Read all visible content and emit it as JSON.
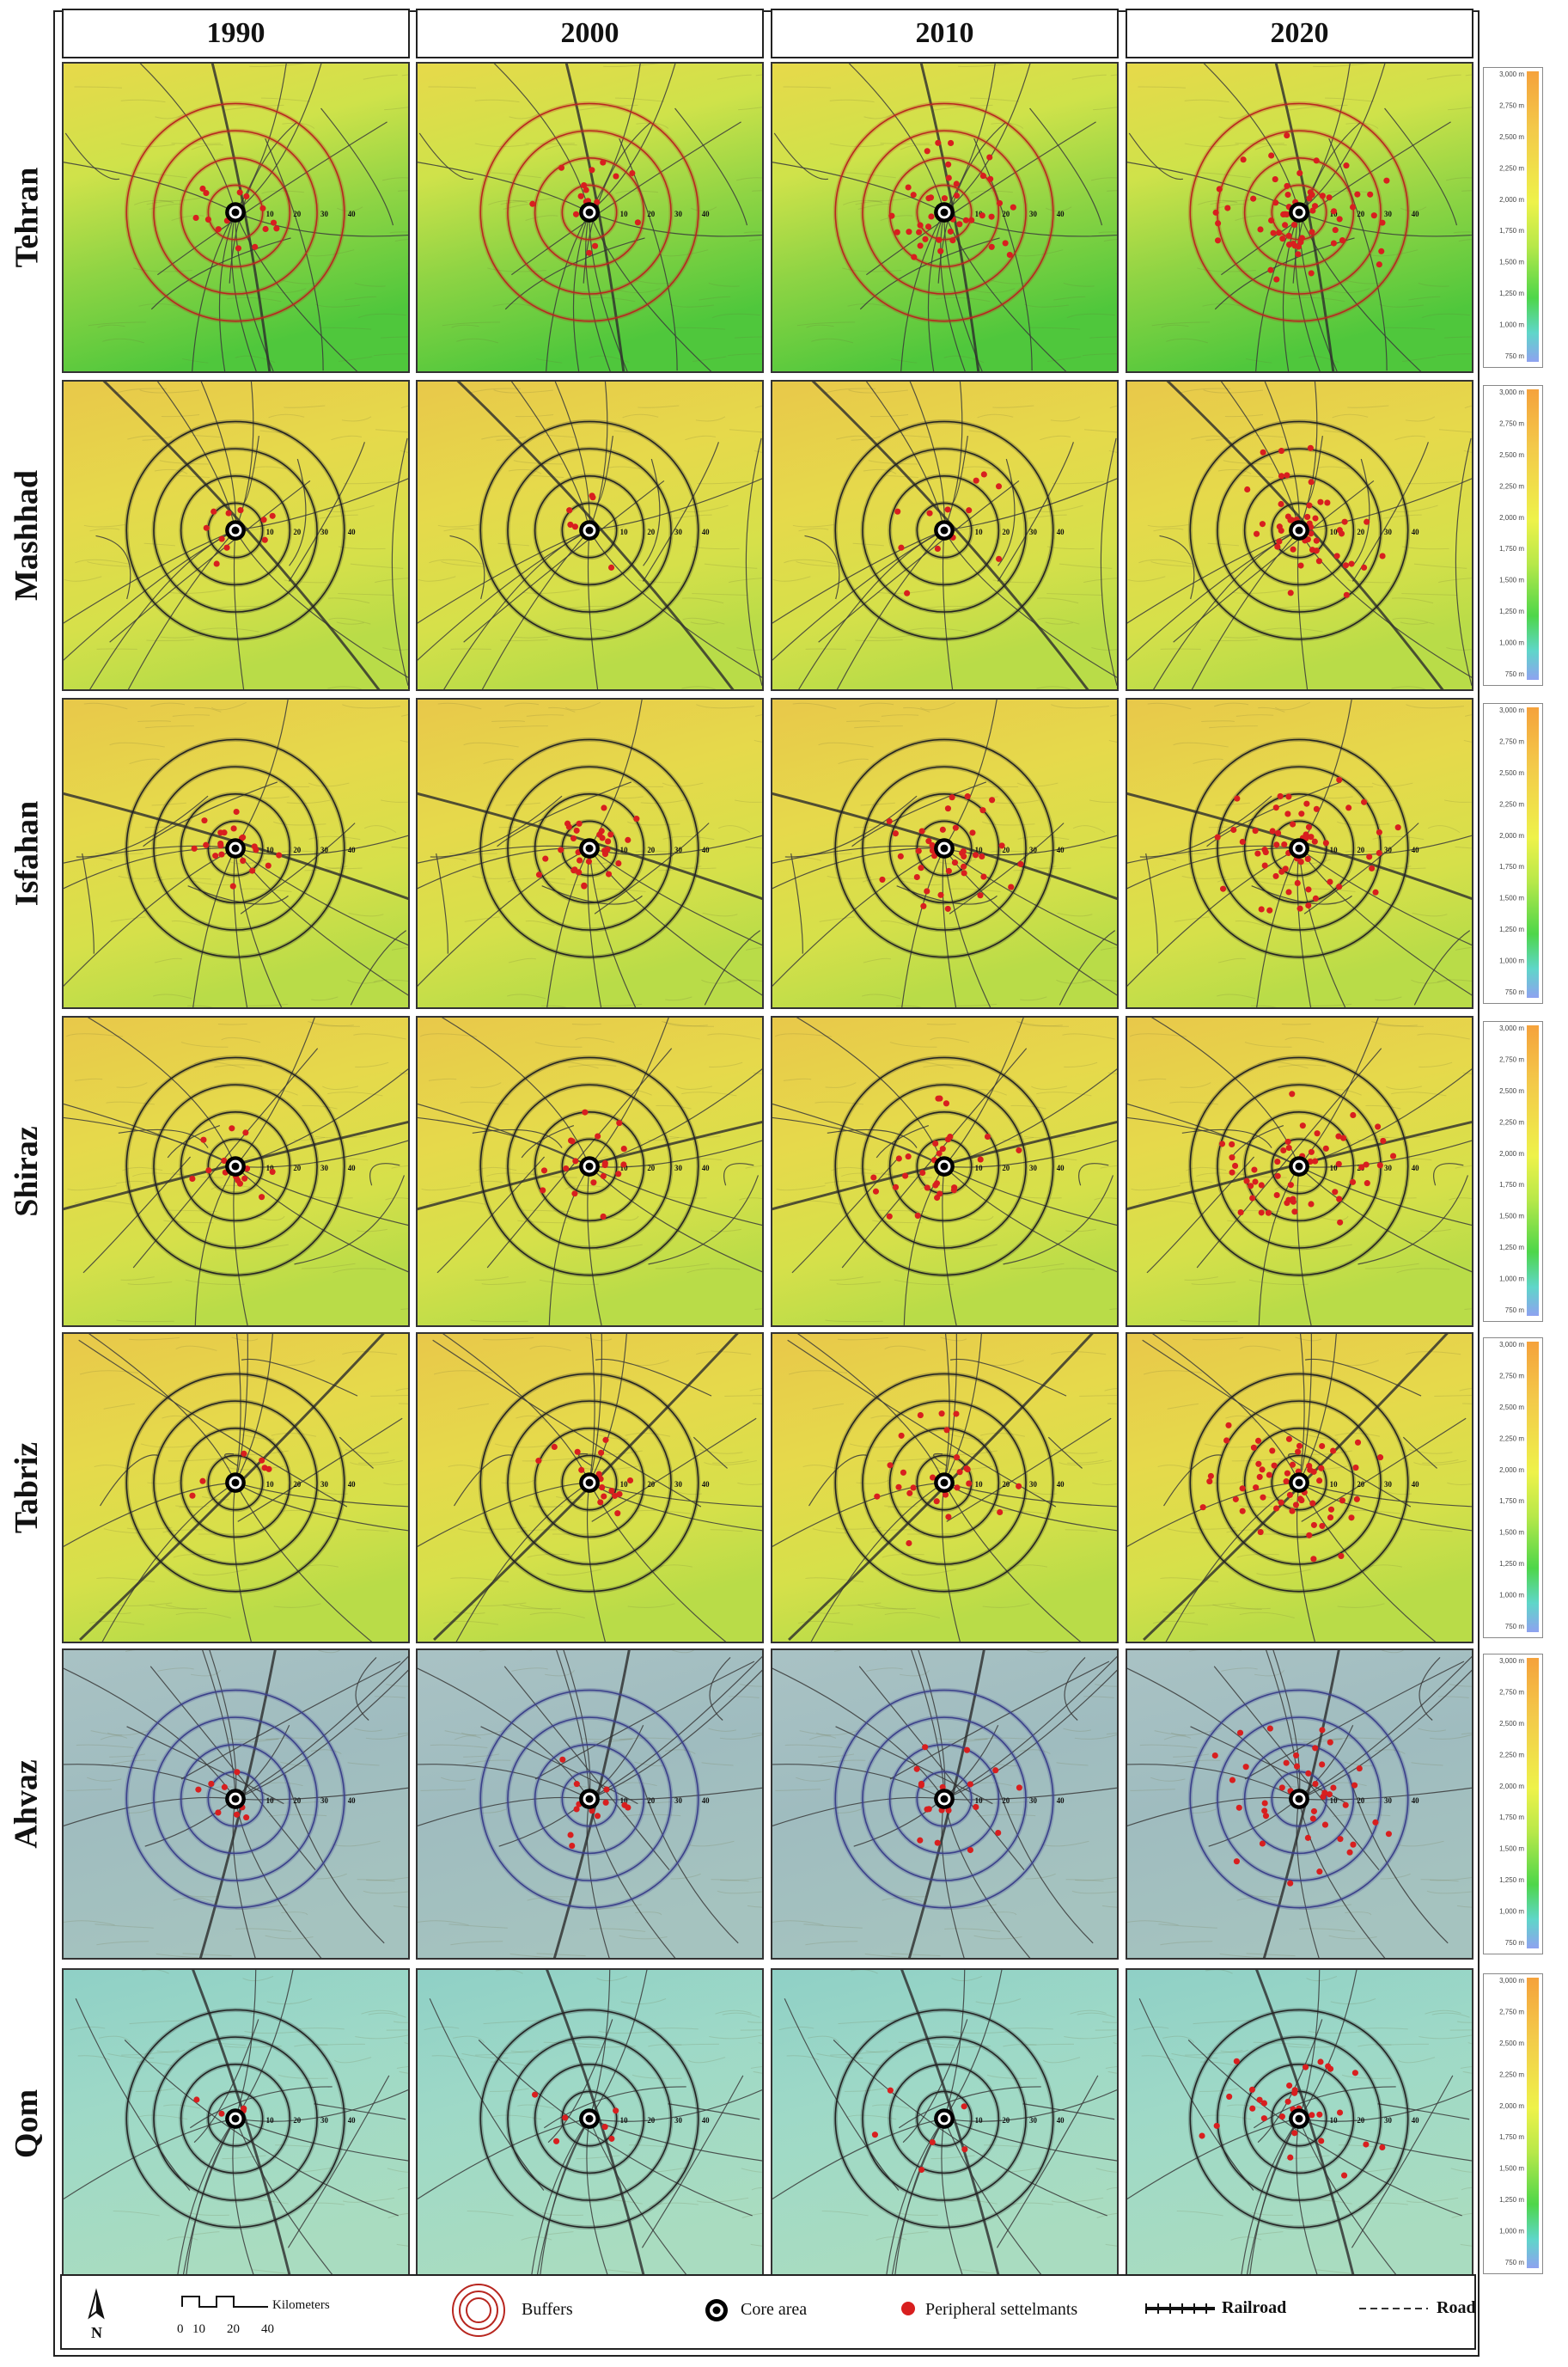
{
  "years": [
    "1990",
    "2000",
    "2010",
    "2020"
  ],
  "cities": [
    {
      "name": "Tehran",
      "theme": "green-yellow",
      "buffer_color": "#b8261f",
      "settlement_counts": [
        14,
        16,
        40,
        60
      ]
    },
    {
      "name": "Mashhad",
      "theme": "yellow",
      "buffer_color": "#222222",
      "settlement_counts": [
        10,
        6,
        12,
        45
      ]
    },
    {
      "name": "Isfahan",
      "theme": "yellow",
      "buffer_color": "#222222",
      "settlement_counts": [
        20,
        30,
        38,
        55
      ]
    },
    {
      "name": "Shiraz",
      "theme": "yellow",
      "buffer_color": "#222222",
      "settlement_counts": [
        14,
        18,
        28,
        50
      ]
    },
    {
      "name": "Tabriz",
      "theme": "yellow",
      "buffer_color": "#222222",
      "settlement_counts": [
        6,
        16,
        24,
        55
      ]
    },
    {
      "name": "Ahvaz",
      "theme": "blue-gray",
      "buffer_color": "#3a3f8a",
      "settlement_counts": [
        8,
        12,
        18,
        40
      ]
    },
    {
      "name": "Qom",
      "theme": "cyan",
      "buffer_color": "#222222",
      "settlement_counts": [
        4,
        6,
        6,
        30
      ]
    }
  ],
  "buffer_labels": [
    "10",
    "20",
    "30",
    "40"
  ],
  "elevation_scale": [
    "3,000 m",
    "2,750 m",
    "2,500 m",
    "2,250 m",
    "2,000 m",
    "1,750 m",
    "1,500 m",
    "1,250 m",
    "1,000 m",
    "750 m"
  ],
  "legend": {
    "north_label": "N",
    "scale_ticks": [
      "0",
      "10",
      "20",
      "40"
    ],
    "scale_unit": "Kilometers",
    "buffers": "Buffers",
    "core_area": "Core area",
    "peripheral": "Peripheral settelmants",
    "railroad": "Railroad",
    "road": "Road"
  },
  "colors": {
    "settlement": "#d81f1f",
    "core": "#000000",
    "road": "#3a3a3a"
  }
}
